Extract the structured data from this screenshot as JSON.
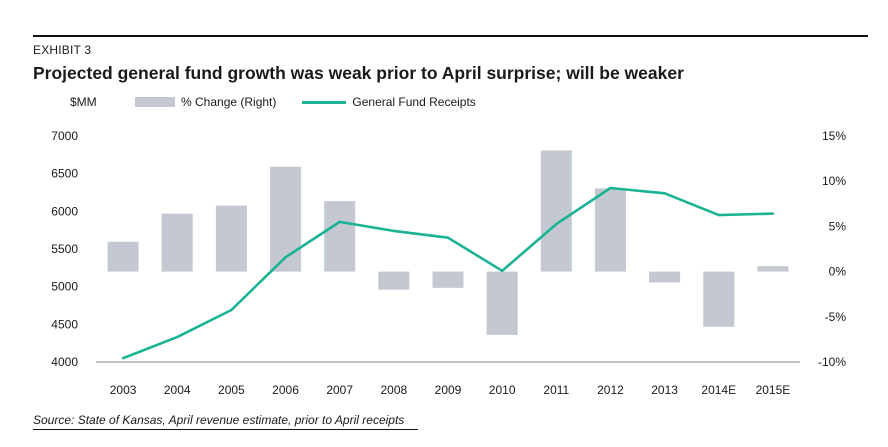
{
  "exhibit_label": "EXHIBIT 3",
  "title": "Projected general fund growth was weak prior to April surprise; will be weaker",
  "left_unit": "$MM",
  "source": "Source: State of Kansas, April revenue estimate, prior to April receipts",
  "colors": {
    "bar": "#c4c8d1",
    "line": "#1ab394",
    "axis": "#888888"
  },
  "chart_data": {
    "type": "bar+line",
    "categories": [
      "2003",
      "2004",
      "2005",
      "2006",
      "2007",
      "2008",
      "2009",
      "2010",
      "2011",
      "2012",
      "2013",
      "2014E",
      "2015E"
    ],
    "series": [
      {
        "name": "% Change (Right)",
        "type": "bar",
        "axis": "right",
        "values": [
          3.3,
          6.4,
          7.3,
          11.6,
          7.8,
          -2.0,
          -1.8,
          -7.0,
          13.4,
          9.2,
          -1.2,
          -6.1,
          0.6
        ]
      },
      {
        "name": "General Fund Receipts",
        "type": "line",
        "axis": "left",
        "values": [
          4050,
          4330,
          4690,
          5390,
          5860,
          5740,
          5650,
          5210,
          5830,
          6310,
          6240,
          5950,
          5970
        ]
      }
    ],
    "y_left": {
      "min": 4000,
      "max": 7000,
      "ticks": [
        4000,
        4500,
        5000,
        5500,
        6000,
        6500,
        7000
      ]
    },
    "y_right": {
      "min": -10,
      "max": 15,
      "ticks": [
        -10,
        -5,
        0,
        5,
        10,
        15
      ],
      "tick_labels": [
        "-10%",
        "-5%",
        "0%",
        "5%",
        "10%",
        "15%"
      ]
    },
    "legend_position": "top"
  }
}
